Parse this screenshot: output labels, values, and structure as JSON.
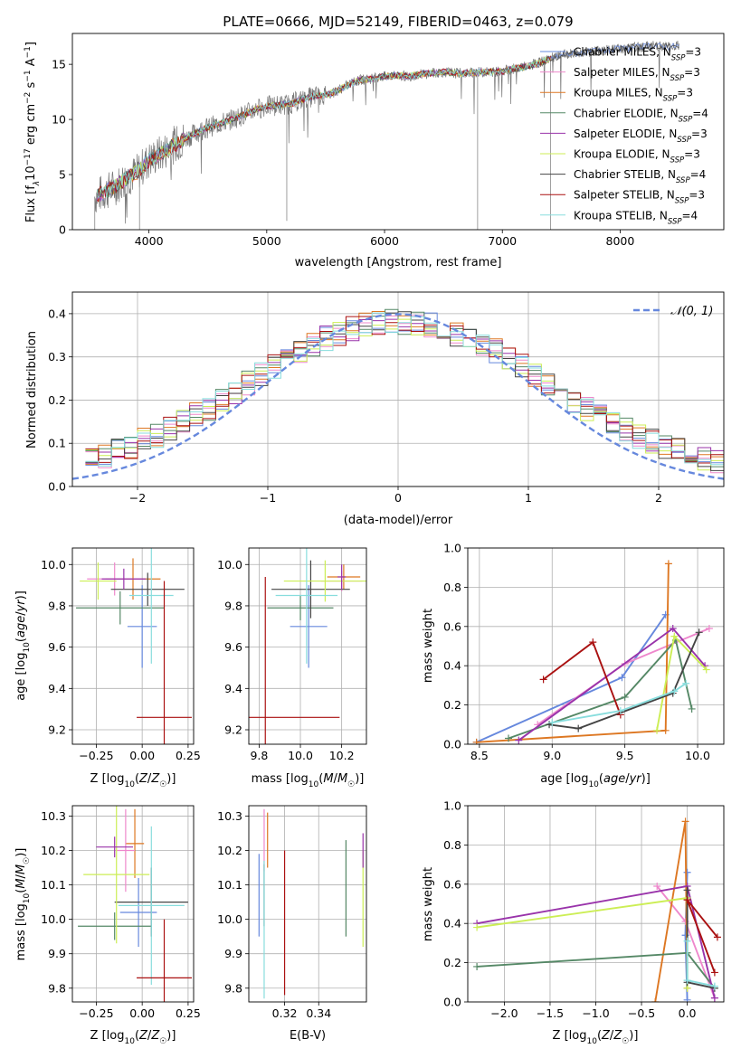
{
  "chart_data": [
    {
      "id": "spectrum",
      "type": "line",
      "title": "PLATE=0666, MJD=52149, FIBERID=0463, z=0.079",
      "xlabel": "wavelength [Angstrom, rest frame]",
      "ylabel": "Flux [f_λ 10^-17 erg cm^-2 s^-1 A^-1]",
      "xlim": [
        3350,
        8880
      ],
      "ylim": [
        0,
        17.8
      ],
      "xticks": [
        4000,
        5000,
        6000,
        7000,
        8000
      ],
      "yticks": [
        0,
        5,
        10,
        15
      ],
      "grid": false,
      "legend_position": "top-right",
      "data": {
        "x": [
          3540,
          3600,
          3700,
          3800,
          3900,
          4000,
          4100,
          4200,
          4300,
          4400,
          4500,
          4600,
          4700,
          4800,
          4900,
          5000,
          5100,
          5200,
          5300,
          5400,
          5500,
          5600,
          5700,
          5800,
          5900,
          6000,
          6100,
          6200,
          6300,
          6400,
          6500,
          6600,
          6700,
          6800,
          6900,
          7000,
          7100,
          7200,
          7300,
          7400,
          7500,
          7600,
          7700,
          7800,
          7900,
          8000,
          8100,
          8200,
          8300,
          8400,
          8500
        ],
        "y": [
          3.0,
          3.3,
          3.8,
          4.6,
          5.2,
          6.3,
          6.9,
          7.6,
          8.2,
          8.8,
          9.3,
          9.6,
          10.0,
          10.4,
          10.9,
          11.2,
          11.3,
          11.4,
          11.8,
          12.1,
          12.2,
          12.6,
          13.2,
          13.6,
          13.7,
          13.9,
          14.0,
          13.9,
          14.1,
          14.2,
          14.3,
          14.2,
          14.2,
          14.3,
          14.3,
          14.4,
          14.6,
          14.8,
          15.1,
          15.5,
          15.8,
          16.0,
          16.1,
          16.2,
          16.3,
          16.4,
          16.5,
          16.6,
          16.7,
          16.6,
          16.7
        ]
      },
      "series": [
        {
          "name": "Chabrier MILES, N_SSP=3",
          "color": "#6688dd"
        },
        {
          "name": "Salpeter MILES, N_SSP=3",
          "color": "#ee88cc"
        },
        {
          "name": "Kroupa MILES, N_SSP=3",
          "color": "#dd7722"
        },
        {
          "name": "Chabrier ELODIE, N_SSP=4",
          "color": "#558866"
        },
        {
          "name": "Salpeter ELODIE, N_SSP=3",
          "color": "#9933aa"
        },
        {
          "name": "Kroupa ELODIE, N_SSP=3",
          "color": "#ccee55"
        },
        {
          "name": "Chabrier STELIB, N_SSP=4",
          "color": "#444444"
        },
        {
          "name": "Salpeter STELIB, N_SSP=3",
          "color": "#aa1111"
        },
        {
          "name": "Kroupa STELIB, N_SSP=4",
          "color": "#88dddd"
        }
      ],
      "legend_labels": [
        {
          "base": "Chabrier MILES, N",
          "sub": "SSP",
          "rest": "=3"
        },
        {
          "base": "Salpeter MILES, N",
          "sub": "SSP",
          "rest": "=3"
        },
        {
          "base": "Kroupa MILES, N",
          "sub": "SSP",
          "rest": "=3"
        },
        {
          "base": "Chabrier ELODIE, N",
          "sub": "SSP",
          "rest": "=4"
        },
        {
          "base": "Salpeter ELODIE, N",
          "sub": "SSP",
          "rest": "=3"
        },
        {
          "base": "Kroupa ELODIE, N",
          "sub": "SSP",
          "rest": "=3"
        },
        {
          "base": "Chabrier STELIB, N",
          "sub": "SSP",
          "rest": "=4"
        },
        {
          "base": "Salpeter STELIB, N",
          "sub": "SSP",
          "rest": "=3"
        },
        {
          "base": "Kroupa STELIB, N",
          "sub": "SSP",
          "rest": "=4"
        }
      ]
    },
    {
      "id": "residuals",
      "type": "line",
      "xlabel": "(data-model)/error",
      "ylabel": "Normed distribution",
      "xlim": [
        -2.5,
        2.5
      ],
      "ylim": [
        0,
        0.45
      ],
      "xticks": [
        -2,
        -1,
        0,
        1,
        2
      ],
      "yticks": [
        0.0,
        0.1,
        0.2,
        0.3,
        0.4
      ],
      "grid": true,
      "legend_position": "top-right",
      "series": [
        {
          "name": "𝒩(0, 1)",
          "color": "#6688dd",
          "style": "dashed"
        }
      ],
      "histogram_bins": [
        -2.4,
        -2.3,
        -2.2,
        -2.1,
        -2.0,
        -1.9,
        -1.8,
        -1.7,
        -1.6,
        -1.5,
        -1.4,
        -1.3,
        -1.2,
        -1.1,
        -1.0,
        -0.9,
        -0.8,
        -0.7,
        -0.6,
        -0.5,
        -0.4,
        -0.3,
        -0.2,
        -0.1,
        0.0,
        0.1,
        0.2,
        0.3,
        0.4,
        0.5,
        0.6,
        0.7,
        0.8,
        0.9,
        1.0,
        1.1,
        1.2,
        1.3,
        1.4,
        1.5,
        1.6,
        1.7,
        1.8,
        1.9,
        2.0,
        2.1,
        2.2,
        2.3,
        2.4
      ]
    },
    {
      "id": "age-vs-z",
      "type": "scatter",
      "xlabel": "Z [log10(Z/Z☉)]",
      "ylabel": "age [log10(age/yr)]",
      "xlim": [
        -0.38,
        0.28
      ],
      "ylim": [
        9.13,
        10.08
      ],
      "xticks": [
        -0.25,
        0.0,
        0.25
      ],
      "yticks": [
        9.2,
        9.4,
        9.6,
        9.8,
        10.0
      ],
      "grid": true,
      "points": [
        {
          "x": 0.0,
          "xerr": 0.08,
          "y": 9.7,
          "yerr": 0.2,
          "color": "#6688dd"
        },
        {
          "x": -0.05,
          "xerr": 0.15,
          "y": 9.93,
          "yerr": 0.1,
          "color": "#dd7722"
        },
        {
          "x": -0.15,
          "xerr": 0.15,
          "y": 9.93,
          "yerr": 0.08,
          "color": "#ee88cc"
        },
        {
          "x": -0.12,
          "xerr": 0.24,
          "y": 9.79,
          "yerr": 0.08,
          "color": "#558866"
        },
        {
          "x": 0.03,
          "xerr": 0.2,
          "y": 9.88,
          "yerr": 0.08,
          "color": "#444444"
        },
        {
          "x": -0.24,
          "xerr": 0.1,
          "y": 9.92,
          "yerr": 0.09,
          "color": "#ccee55"
        },
        {
          "x": 0.05,
          "xerr": 0.12,
          "y": 9.85,
          "yerr": 0.33,
          "color": "#88dddd"
        },
        {
          "x": 0.12,
          "xerr": 0.15,
          "y": 9.26,
          "yerr": 0.66,
          "color": "#aa1111"
        },
        {
          "x": -0.1,
          "xerr": 0.12,
          "y": 9.93,
          "yerr": 0.05,
          "color": "#9933aa"
        }
      ]
    },
    {
      "id": "age-vs-mass",
      "type": "scatter",
      "xlabel": "mass [log10(M/M☉)]",
      "xlim": [
        9.75,
        10.32
      ],
      "ylim": [
        9.13,
        10.08
      ],
      "xticks": [
        9.8,
        10.0,
        10.2
      ],
      "yticks": [
        9.2,
        9.4,
        9.6,
        9.8,
        10.0
      ],
      "grid": true,
      "points": [
        {
          "x": 10.04,
          "xerr": 0.09,
          "y": 9.7,
          "yerr": 0.2,
          "color": "#6688dd"
        },
        {
          "x": 10.21,
          "xerr": 0.08,
          "y": 9.94,
          "yerr": 0.06,
          "color": "#dd7722"
        },
        {
          "x": 10.2,
          "xerr": 0.1,
          "y": 9.92,
          "yerr": 0.05,
          "color": "#ee88cc"
        },
        {
          "x": 10.0,
          "xerr": 0.16,
          "y": 9.79,
          "yerr": 0.06,
          "color": "#558866"
        },
        {
          "x": 10.05,
          "xerr": 0.19,
          "y": 9.88,
          "yerr": 0.14,
          "color": "#444444"
        },
        {
          "x": 10.12,
          "xerr": 0.2,
          "y": 9.92,
          "yerr": 0.1,
          "color": "#ccee55"
        },
        {
          "x": 10.03,
          "xerr": 0.15,
          "y": 9.85,
          "yerr": 0.33,
          "color": "#88dddd"
        },
        {
          "x": 9.83,
          "xerr": 0.36,
          "y": 9.26,
          "yerr": 0.68,
          "color": "#aa1111"
        },
        {
          "x": 10.2,
          "xerr": 0.02,
          "y": 9.94,
          "yerr": 0.06,
          "color": "#9933aa"
        }
      ]
    },
    {
      "id": "mass-weight-vs-age",
      "type": "line",
      "xlabel": "age [log10(age/yr)]",
      "ylabel": "mass weight",
      "xlim": [
        8.42,
        10.18
      ],
      "ylim": [
        0,
        1.0
      ],
      "xticks": [
        8.5,
        9.0,
        9.5,
        10.0
      ],
      "yticks": [
        0.0,
        0.2,
        0.4,
        0.6,
        0.8,
        1.0
      ],
      "grid": true,
      "series": [
        {
          "color": "#6688dd",
          "points": [
            [
              8.48,
              0.01
            ],
            [
              9.48,
              0.34
            ],
            [
              9.78,
              0.66
            ]
          ]
        },
        {
          "color": "#ee88cc",
          "points": [
            [
              8.9,
              0.1
            ],
            [
              9.5,
              0.41
            ],
            [
              10.08,
              0.59
            ]
          ]
        },
        {
          "color": "#dd7722",
          "points": [
            [
              8.48,
              0.01
            ],
            [
              9.78,
              0.07
            ],
            [
              9.8,
              0.92
            ]
          ]
        },
        {
          "color": "#558866",
          "points": [
            [
              8.7,
              0.03
            ],
            [
              9.5,
              0.24
            ],
            [
              9.85,
              0.53
            ],
            [
              9.96,
              0.18
            ]
          ]
        },
        {
          "color": "#9933aa",
          "points": [
            [
              8.77,
              0.02
            ],
            [
              9.83,
              0.59
            ],
            [
              10.05,
              0.4
            ]
          ]
        },
        {
          "color": "#ccee55",
          "points": [
            [
              9.72,
              0.07
            ],
            [
              9.84,
              0.55
            ],
            [
              10.06,
              0.38
            ]
          ]
        },
        {
          "color": "#444444",
          "points": [
            [
              8.98,
              0.1
            ],
            [
              9.18,
              0.08
            ],
            [
              9.83,
              0.26
            ],
            [
              10.01,
              0.57
            ]
          ]
        },
        {
          "color": "#aa1111",
          "points": [
            [
              8.94,
              0.33
            ],
            [
              9.28,
              0.52
            ],
            [
              9.47,
              0.15
            ]
          ]
        },
        {
          "color": "#88dddd",
          "points": [
            [
              9.0,
              0.11
            ],
            [
              9.47,
              0.17
            ],
            [
              9.84,
              0.27
            ],
            [
              9.92,
              0.31
            ]
          ]
        }
      ]
    },
    {
      "id": "mass-vs-z",
      "type": "scatter",
      "xlabel": "Z [log10(Z/Z☉)]",
      "ylabel": "mass [log10(M/M☉)]",
      "xlim": [
        -0.38,
        0.28
      ],
      "ylim": [
        9.76,
        10.33
      ],
      "xticks": [
        -0.25,
        0.0,
        0.25
      ],
      "yticks": [
        9.8,
        9.9,
        10.0,
        10.1,
        10.2,
        10.3
      ],
      "grid": true,
      "points": [
        {
          "x": -0.02,
          "xerr": 0.1,
          "y": 10.02,
          "yerr": 0.1,
          "color": "#6688dd"
        },
        {
          "x": -0.04,
          "xerr": 0.05,
          "y": 10.22,
          "yerr": 0.1,
          "color": "#dd7722"
        },
        {
          "x": -0.09,
          "xerr": 0.05,
          "y": 10.2,
          "yerr": 0.12,
          "color": "#ee88cc"
        },
        {
          "x": -0.15,
          "xerr": 0.2,
          "y": 9.98,
          "yerr": 0.04,
          "color": "#558866"
        },
        {
          "x": 0.05,
          "xerr": 0.2,
          "y": 10.05,
          "yerr": 0.1,
          "color": "#444444"
        },
        {
          "x": -0.14,
          "xerr": 0.18,
          "y": 10.13,
          "yerr": 0.2,
          "color": "#ccee55"
        },
        {
          "x": 0.05,
          "xerr": 0.18,
          "y": 10.04,
          "yerr": 0.23,
          "color": "#88dddd"
        },
        {
          "x": 0.12,
          "xerr": 0.15,
          "y": 9.83,
          "yerr": 0.17,
          "color": "#aa1111"
        },
        {
          "x": -0.15,
          "xerr": 0.1,
          "y": 10.21,
          "yerr": 0.03,
          "color": "#9933aa"
        }
      ]
    },
    {
      "id": "mass-vs-ebv",
      "type": "scatter",
      "xlabel": "E(B-V)",
      "xlim": [
        0.299,
        0.368
      ],
      "ylim": [
        9.76,
        10.33
      ],
      "xticks": [
        0.32,
        0.34
      ],
      "yticks": [
        9.8,
        9.9,
        10.0,
        10.1,
        10.2,
        10.3
      ],
      "grid": true,
      "points": [
        {
          "x": 0.305,
          "y": 10.07,
          "yerr": 0.12,
          "color": "#6688dd"
        },
        {
          "x": 0.31,
          "y": 10.23,
          "yerr": 0.08,
          "color": "#dd7722"
        },
        {
          "x": 0.308,
          "y": 10.23,
          "yerr": 0.09,
          "color": "#ee88cc"
        },
        {
          "x": 0.356,
          "y": 10.09,
          "yerr": 0.14,
          "color": "#558866"
        },
        {
          "x": 0.308,
          "y": 10.07,
          "yerr": 0.09,
          "color": "#444444"
        },
        {
          "x": 0.366,
          "y": 10.06,
          "yerr": 0.14,
          "color": "#ccee55"
        },
        {
          "x": 0.308,
          "y": 9.97,
          "yerr": 0.2,
          "color": "#88dddd"
        },
        {
          "x": 0.32,
          "y": 9.99,
          "yerr": 0.21,
          "color": "#aa1111"
        },
        {
          "x": 0.366,
          "y": 10.2,
          "yerr": 0.05,
          "color": "#9933aa"
        }
      ]
    },
    {
      "id": "mass-weight-vs-z",
      "type": "line",
      "xlabel": "Z [log10(Z/Z☉)]",
      "ylabel": "mass weight",
      "xlim": [
        -2.4,
        0.4
      ],
      "ylim": [
        0,
        1.0
      ],
      "xticks": [
        -2.0,
        -1.5,
        -1.0,
        -0.5,
        0.0
      ],
      "yticks": [
        0.0,
        0.2,
        0.4,
        0.6,
        0.8,
        1.0
      ],
      "grid": true,
      "series": [
        {
          "color": "#6688dd",
          "points": [
            [
              0.0,
              0.66
            ],
            [
              -0.02,
              0.34
            ],
            [
              0.0,
              0.01
            ]
          ]
        },
        {
          "color": "#ee88cc",
          "points": [
            [
              -0.33,
              0.59
            ],
            [
              -0.02,
              0.41
            ],
            [
              0.3,
              0.02
            ]
          ]
        },
        {
          "color": "#dd7722",
          "points": [
            [
              -0.35,
              0.0
            ],
            [
              -0.02,
              0.92
            ],
            [
              0.0,
              0.07
            ]
          ]
        },
        {
          "color": "#558866",
          "points": [
            [
              -2.3,
              0.18
            ],
            [
              0.0,
              0.25
            ],
            [
              0.3,
              0.07
            ]
          ]
        },
        {
          "color": "#9933aa",
          "points": [
            [
              -2.3,
              0.4
            ],
            [
              0.0,
              0.59
            ],
            [
              0.3,
              0.02
            ]
          ]
        },
        {
          "color": "#ccee55",
          "points": [
            [
              -2.3,
              0.38
            ],
            [
              0.0,
              0.53
            ],
            [
              0.0,
              0.07
            ]
          ]
        },
        {
          "color": "#444444",
          "points": [
            [
              0.0,
              0.57
            ],
            [
              0.0,
              0.1
            ],
            [
              0.3,
              0.07
            ]
          ]
        },
        {
          "color": "#aa1111",
          "points": [
            [
              0.33,
              0.33
            ],
            [
              0.0,
              0.52
            ],
            [
              0.3,
              0.15
            ]
          ]
        },
        {
          "color": "#88dddd",
          "points": [
            [
              0.0,
              0.31
            ],
            [
              0.0,
              0.11
            ],
            [
              0.3,
              0.08
            ]
          ]
        }
      ]
    }
  ],
  "text": {
    "title": "PLATE=0666, MJD=52149, FIBERID=0463, z=0.079",
    "gaussian_legend": "𝒩(0, 1)"
  }
}
